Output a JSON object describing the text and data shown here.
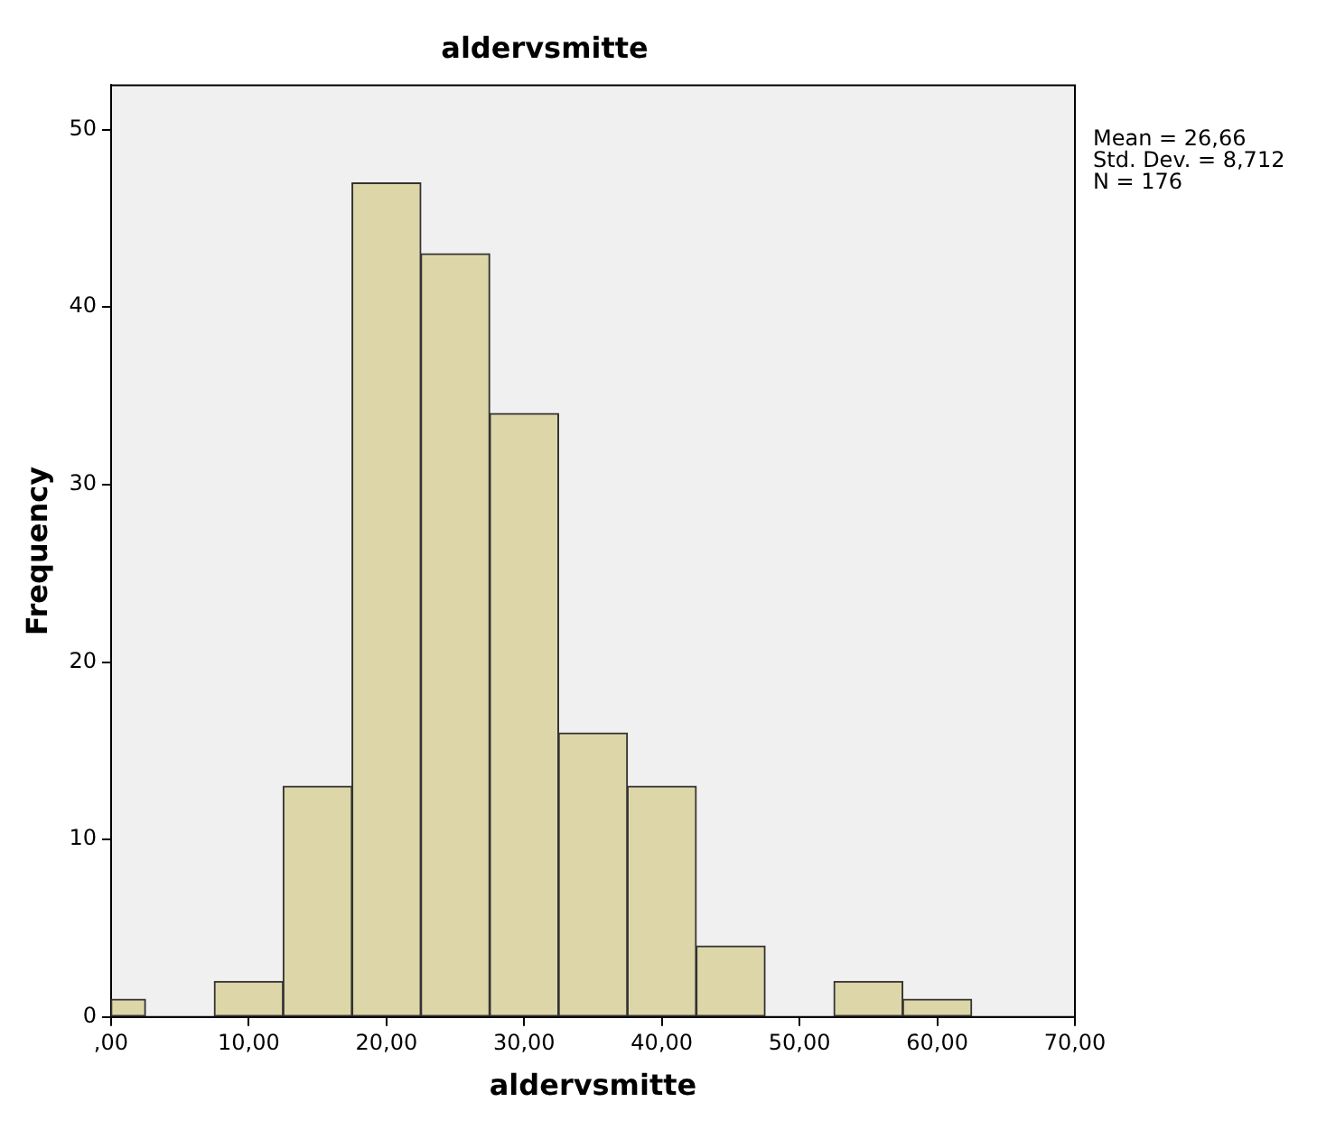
{
  "chart_data": {
    "type": "histogram",
    "title": "aldervsmitte",
    "xlabel": "aldervsmitte",
    "ylabel": "Frequency",
    "bins": [
      0,
      2.5,
      7.5,
      12.5,
      17.5,
      22.5,
      27.5,
      32.5,
      37.5,
      42.5,
      47.5,
      52.5,
      57.5,
      62.5
    ],
    "values": [
      1,
      0,
      2,
      13,
      47,
      43,
      34,
      16,
      13,
      4,
      0,
      2,
      1
    ],
    "color": "#ddd6a8",
    "xlim": [
      0,
      70
    ],
    "ylim": [
      0,
      52.5
    ],
    "xticks": [
      {
        "value": 0,
        "label": ",00"
      },
      {
        "value": 10,
        "label": "10,00"
      },
      {
        "value": 20,
        "label": "20,00"
      },
      {
        "value": 30,
        "label": "30,00"
      },
      {
        "value": 40,
        "label": "40,00"
      },
      {
        "value": 50,
        "label": "50,00"
      },
      {
        "value": 60,
        "label": "60,00"
      },
      {
        "value": 70,
        "label": "70,00"
      }
    ],
    "yticks": [
      0,
      10,
      20,
      30,
      40,
      50
    ],
    "grid": false,
    "legend": false,
    "annotations": [
      "Mean = 26,66",
      "Std. Dev. = 8,712",
      "N = 176"
    ]
  }
}
